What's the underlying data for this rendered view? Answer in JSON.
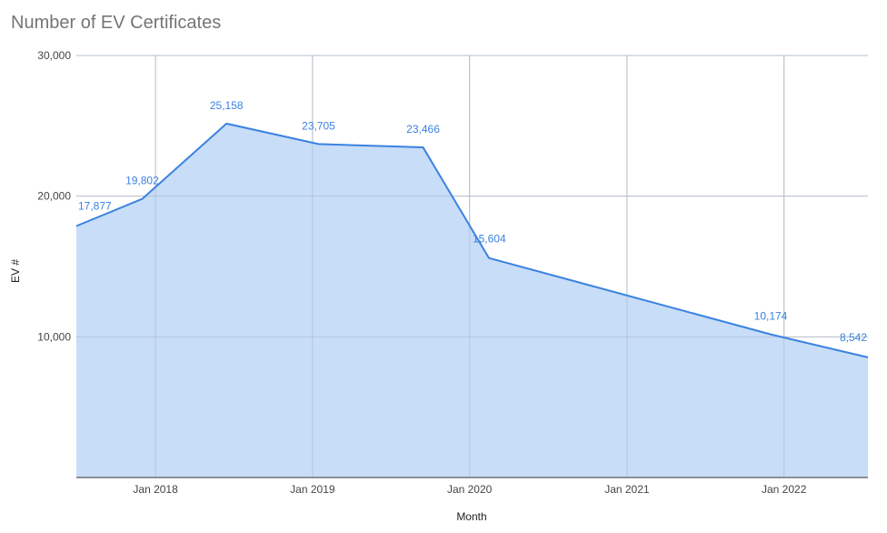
{
  "chart_data": {
    "type": "area",
    "title": "Number of EV Certificates",
    "xlabel": "Month",
    "ylabel": "EV #",
    "ylim": [
      0,
      30000
    ],
    "yticks": [
      {
        "value": 10000,
        "label": "10,000"
      },
      {
        "value": 20000,
        "label": "20,000"
      },
      {
        "value": 30000,
        "label": "30,000"
      }
    ],
    "xlim": [
      "2017-07-01",
      "2022-07-15"
    ],
    "xticks": [
      {
        "date": "2018-01-01",
        "label": "Jan 2018"
      },
      {
        "date": "2019-01-01",
        "label": "Jan 2019"
      },
      {
        "date": "2020-01-01",
        "label": "Jan 2020"
      },
      {
        "date": "2021-01-01",
        "label": "Jan 2021"
      },
      {
        "date": "2022-01-01",
        "label": "Jan 2022"
      }
    ],
    "grid": true,
    "legend": "none",
    "colors": {
      "line": "#3b82e0",
      "fill": "#c5dbf7",
      "grid": "#cccccc",
      "axis": "#333333",
      "title": "#757575"
    },
    "points": [
      {
        "date": "2017-07-01",
        "value": 17877,
        "label": "17,877"
      },
      {
        "date": "2017-12-01",
        "value": 19802,
        "label": "19,802"
      },
      {
        "date": "2018-06-15",
        "value": 25158,
        "label": "25,158"
      },
      {
        "date": "2019-01-15",
        "value": 23705,
        "label": "23,705"
      },
      {
        "date": "2019-09-15",
        "value": 23466,
        "label": "23,466"
      },
      {
        "date": "2020-02-15",
        "value": 15604,
        "label": "15,604"
      },
      {
        "date": "2021-12-01",
        "value": 10174,
        "label": "10,174"
      },
      {
        "date": "2022-07-15",
        "value": 8542,
        "label": "8,542"
      }
    ]
  }
}
